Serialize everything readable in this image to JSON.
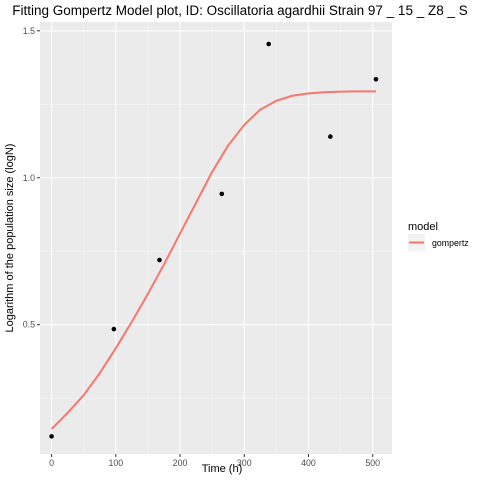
{
  "chart_data": {
    "type": "scatter",
    "title": "Fitting Gompertz Model plot, ID: Oscillatoria agardhii Strain 97 _ 15 _ Z8 _ S",
    "xlabel": "Time (h)",
    "ylabel": "Logarithm of the population size (logN)",
    "xlim": [
      -18,
      530
    ],
    "ylim": [
      0.06,
      1.53
    ],
    "x_ticks": [
      0,
      100,
      200,
      300,
      400,
      500
    ],
    "y_ticks": [
      0.5,
      1.0,
      1.5
    ],
    "y_tick_labels": [
      "0.5",
      "1.0",
      "1.5"
    ],
    "grid": true,
    "legend_position": "right",
    "points": {
      "x": [
        0,
        97,
        168,
        265,
        338,
        434,
        505
      ],
      "y": [
        0.12,
        0.485,
        0.72,
        0.945,
        1.455,
        1.14,
        1.335
      ],
      "color": "#000000"
    },
    "series": [
      {
        "name": "gompertz",
        "color": "#F8766D",
        "x": [
          0,
          25,
          50,
          75,
          100,
          125,
          150,
          175,
          200,
          225,
          250,
          275,
          300,
          325,
          350,
          375,
          400,
          425,
          450,
          475,
          505
        ],
        "y": [
          0.145,
          0.2,
          0.26,
          0.335,
          0.42,
          0.51,
          0.605,
          0.705,
          0.81,
          0.915,
          1.02,
          1.11,
          1.18,
          1.232,
          1.262,
          1.279,
          1.287,
          1.291,
          1.293,
          1.294,
          1.294
        ]
      }
    ],
    "legend": {
      "title": "model",
      "entries": [
        "gompertz"
      ]
    }
  },
  "colors": {
    "panel_background": "#EBEBEB",
    "grid_major": "#FFFFFF",
    "axis_text": "#4D4D4D"
  }
}
